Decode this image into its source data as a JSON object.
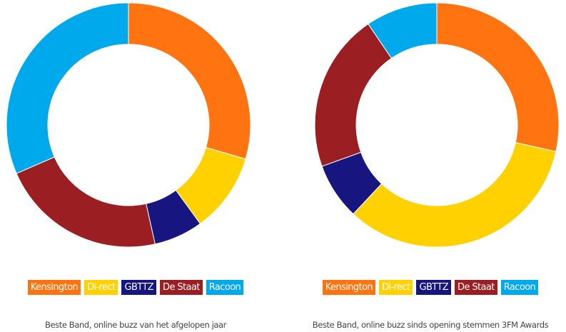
{
  "chart_data": [
    {
      "type": "pie",
      "donut": true,
      "caption": "Beste Band, online buzz van het afgelopen jaar",
      "categories": [
        "Kensington",
        "Di-rect",
        "GBTTZ",
        "De Staat",
        "Racoon"
      ],
      "values": [
        29.5,
        10.5,
        6.5,
        22.0,
        31.5
      ],
      "colors": [
        "#FF7410",
        "#FFD100",
        "#171580",
        "#9A1E22",
        "#00A8EC"
      ],
      "legend_position": "bottom"
    },
    {
      "type": "pie",
      "donut": true,
      "caption": "Beste Band, online buzz sinds opening stemmen 3FM Awards",
      "categories": [
        "Kensington",
        "Di-rect",
        "GBTTZ",
        "De Staat",
        "Racoon"
      ],
      "values": [
        28.5,
        33.5,
        7.5,
        21.0,
        9.5
      ],
      "colors": [
        "#FF7410",
        "#FFD100",
        "#171580",
        "#9A1E22",
        "#00A8EC"
      ],
      "legend_position": "bottom"
    }
  ]
}
